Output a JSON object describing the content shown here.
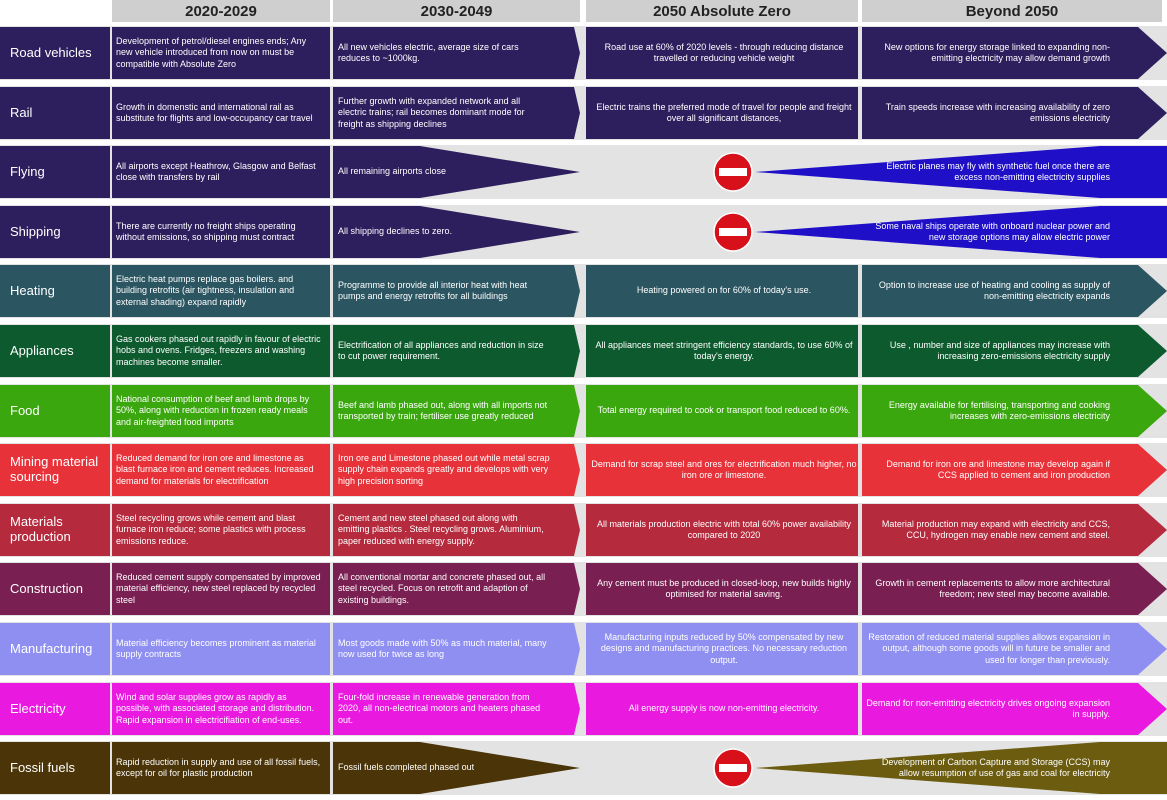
{
  "headers": [
    "2020-2029",
    "2030-2049",
    "2050 Absolute Zero",
    "Beyond 2050"
  ],
  "rows": [
    {
      "label": "Road vehicles",
      "color": "#2d1f5e",
      "beyond_color": "#2d1f5e",
      "stop": false,
      "c1": "Development of petrol/diesel engines ends; Any new vehicle introduced from now on must be compatible with Absolute Zero",
      "c2": "All new vehicles electric, average size of cars reduces to ~1000kg.",
      "c3": "Road use at 60% of 2020 levels - through reducing distance travelled or reducing vehicle weight",
      "c4": "New options for energy storage linked to expanding non-emitting electricity may allow demand growth"
    },
    {
      "label": "Rail",
      "color": "#2d1f5e",
      "beyond_color": "#2d1f5e",
      "stop": false,
      "c1": "Growth in domenstic and international rail as substitute for flights and low-occupancy car travel",
      "c2": "Further growth with expanded network and all electric trains; rail becomes dominant mode for freight as shipping declines",
      "c3": "Electric trains the preferred mode of travel for people and freight over all significant distances,",
      "c4": "Train speeds increase with increasing availability of zero emissions electricity"
    },
    {
      "label": "Flying",
      "color": "#2d1f5e",
      "beyond_color": "#1f10c8",
      "stop": true,
      "c1": "All airports except Heathrow, Glasgow and Belfast close with transfers by rail",
      "c2": "All remaining airports close",
      "c3": "",
      "c4": "Electric planes may fly with synthetic fuel once there are excess non-emitting electricity supplies"
    },
    {
      "label": "Shipping",
      "color": "#2d1f5e",
      "beyond_color": "#1f10c8",
      "stop": true,
      "c1": "There are currently no freight ships operating without emissions, so shipping must contract",
      "c2": "All shipping declines to zero.",
      "c3": "",
      "c4": "Some naval ships operate with onboard nuclear power and new storage options may allow electric power"
    },
    {
      "label": "Heating",
      "color": "#2b5561",
      "beyond_color": "#2b5561",
      "stop": false,
      "c1": "Electric heat pumps replace gas boilers. and building retrofits (air tightness, insulation and external shading) expand rapidly",
      "c2": "Programme to provide all interior heat with heat pumps and energy retrofits for all buildings",
      "c3": "Heating powered on for 60% of today's use.",
      "c4": "Option to increase use of heating and cooling as supply of non-emitting electricity expands"
    },
    {
      "label": "Appliances",
      "color": "#0d5a2e",
      "beyond_color": "#0d5a2e",
      "stop": false,
      "c1": "Gas cookers phased out rapidly in favour of electric hobs and ovens. Fridges, freezers and washing machines become smaller.",
      "c2": "Electrification of all appliances and reduction in size to cut power requirement.",
      "c3": "All appliances meet stringent efficiency standards, to use 60% of today's energy.",
      "c4": "Use , number and size of appliances may increase with increasing zero-emissions electricity supply"
    },
    {
      "label": "Food",
      "color": "#3aa70e",
      "beyond_color": "#3aa70e",
      "stop": false,
      "c1": "National consumption of beef and lamb drops by 50%, along with reduction in frozen ready meals and air-freighted food imports",
      "c2": "Beef and lamb phased out, along with all imports not transported by train; fertiliser use greatly reduced",
      "c3": "Total energy required to cook or transport food reduced to 60%.",
      "c4": "Energy available for fertilising, transporting and cooking increases with zero-emissions electricity"
    },
    {
      "label": "Mining material sourcing",
      "color": "#e8323a",
      "beyond_color": "#e8323a",
      "stop": false,
      "c1": "Reduced demand for iron ore and limestone as blast furnace iron and cement reduces. Increased demand for materials for electrification",
      "c2": "Iron ore and Limestone phased out while metal scrap supply chain expands greatly and develops with very high precision sorting",
      "c3": "Demand for scrap steel and ores for electrification much higher, no iron ore or limestone.",
      "c4": "Demand for iron ore and limestone may develop again if CCS applied to cement and iron production"
    },
    {
      "label": "Materials production",
      "color": "#b52a3c",
      "beyond_color": "#b52a3c",
      "stop": false,
      "c1": "Steel recycling grows while cement and blast furnace iron reduce; some plastics with process emissions reduce.",
      "c2": "Cement and new steel phased out along with emitting plastics . Steel recycling grows. Aluminium, paper reduced with energy supply.",
      "c3": "All materials production electric with total 60% power availability compared to 2020",
      "c4": "Material production may expand with electricity and CCS, CCU, hydrogen may enable new cement and steel."
    },
    {
      "label": "Construction",
      "color": "#7a1f52",
      "beyond_color": "#7a1f52",
      "stop": false,
      "c1": "Reduced cement supply compensated by improved material efficiency, new steel replaced by recycled steel",
      "c2": "All conventional mortar and concrete phased out, all steel recycled. Focus on retrofit and adaption of existing buildings.",
      "c3": "Any cement must be produced in closed-loop, new builds highly optimised for material saving.",
      "c4": "Growth in cement replacements to allow more architectural freedom; new steel may become available."
    },
    {
      "label": "Manufacturing",
      "color": "#8f8ff2",
      "beyond_color": "#8f8ff2",
      "stop": false,
      "c1": "Material efficiency becomes prominent as material supply contracts",
      "c2": "Most goods made with 50% as much material, many now used for twice as long",
      "c3": "Manufacturing inputs reduced by 50% compensated by new designs and manufacturing practices. No necessary reduction output.",
      "c4": "Restoration of reduced material supplies allows expansion in output, although some goods will in future be smaller and used for longer than previously."
    },
    {
      "label": "Electricity",
      "color": "#ea19e0",
      "beyond_color": "#ea19e0",
      "stop": false,
      "c1": "Wind and solar supplies grow as rapidly as possible, with associated storage and distribution. Rapid expansion in electricifiation of end-uses.",
      "c2": "Four-fold increase in renewable generation from 2020, all non-electrical motors and heaters phased out.",
      "c3": "All energy supply is now non-emitting electricity.",
      "c4": "Demand for non-emitting electricity drives ongoing expansion in supply."
    },
    {
      "label": "Fossil fuels",
      "color": "#4a3408",
      "beyond_color": "#6b5c10",
      "stop": true,
      "c1": "Rapid reduction in supply and use of all fossil fuels, except for oil for plastic production",
      "c2": "Fossil fuels completed phased out",
      "c3": "",
      "c4": "Development of Carbon Capture and Storage (CCS) may allow resumption of use of gas and coal for electricity"
    }
  ]
}
